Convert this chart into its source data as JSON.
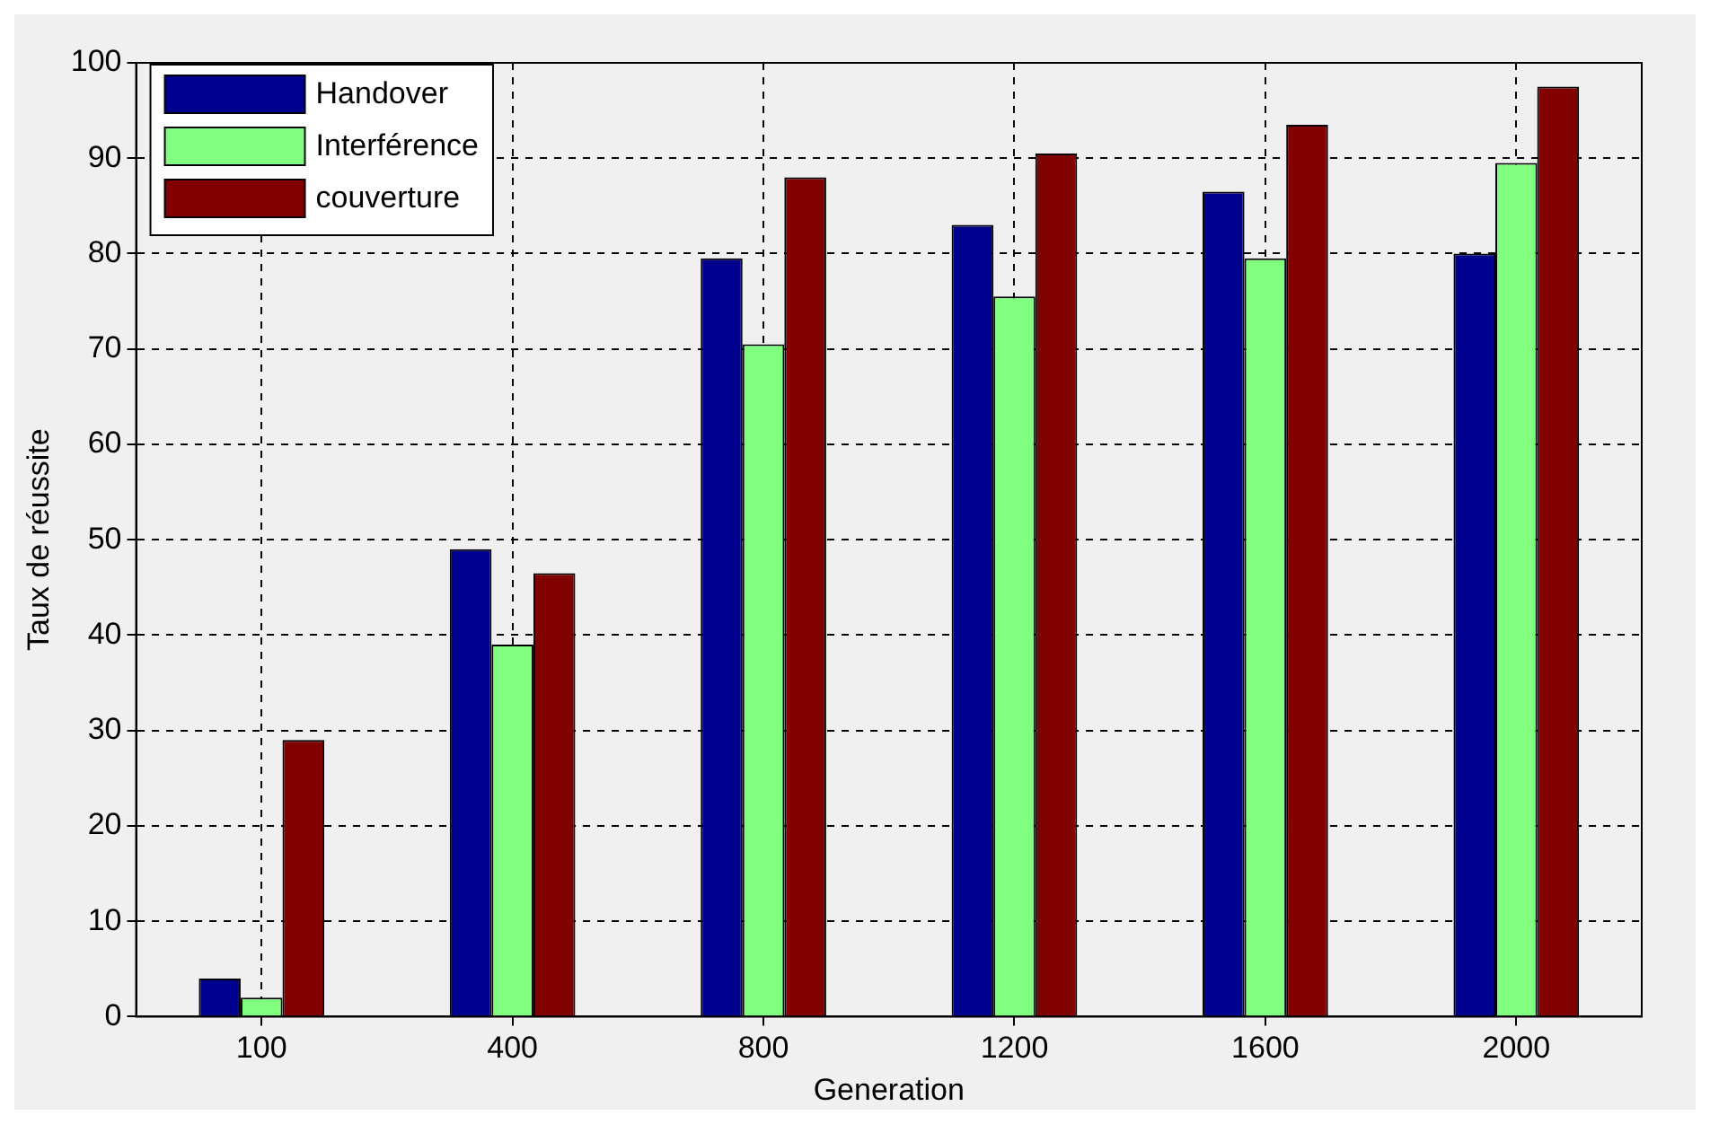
{
  "chart_data": {
    "type": "bar",
    "xlabel": "Generation",
    "ylabel": "Taux de réussite",
    "categories": [
      "100",
      "400",
      "800",
      "1200",
      "1600",
      "2000"
    ],
    "series": [
      {
        "name": "Handover",
        "color": "#00008f",
        "values": [
          4,
          49,
          79.5,
          83,
          86.5,
          80
        ]
      },
      {
        "name": "Interférence",
        "color": "#80ff80",
        "values": [
          2,
          39,
          70.5,
          75.5,
          79.5,
          89.5
        ]
      },
      {
        "name": "couverture",
        "color": "#800000",
        "values": [
          29,
          46.5,
          88,
          90.5,
          93.5,
          97.5
        ]
      }
    ],
    "ylim": [
      0,
      100
    ],
    "yticks": [
      0,
      10,
      20,
      30,
      40,
      50,
      60,
      70,
      80,
      90,
      100
    ],
    "grid": true,
    "legend": "top left"
  }
}
